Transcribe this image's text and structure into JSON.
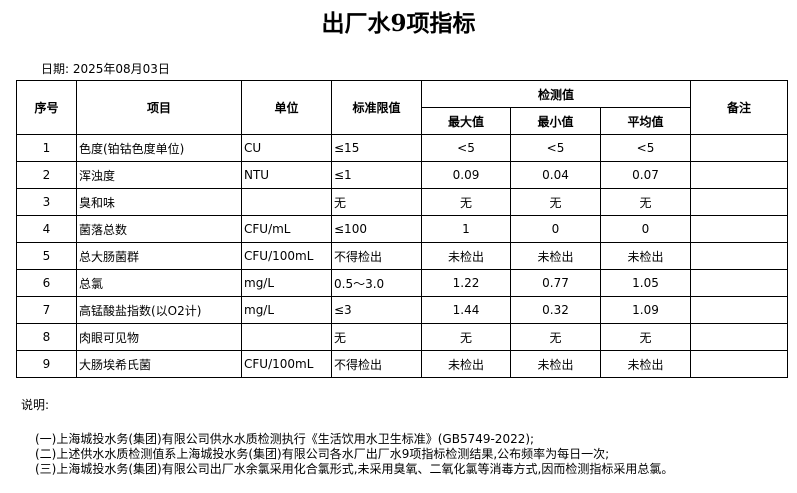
{
  "title": "出厂水9项指标",
  "date": "日期: 2025年08月03日",
  "headers": {
    "seq": "序号",
    "item": "项目",
    "unit": "单位",
    "limit": "标准限值",
    "detect": "检测值",
    "max": "最大值",
    "min": "最小值",
    "avg": "平均值",
    "remark": "备注"
  },
  "rows": [
    {
      "seq": "1",
      "item": "色度(铂钴色度单位)",
      "unit": "CU",
      "limit": "≤15",
      "max": "<5",
      "min": "<5",
      "avg": "<5",
      "remark": ""
    },
    {
      "seq": "2",
      "item": "浑浊度",
      "unit": "NTU",
      "limit": "≤1",
      "max": "0.09",
      "min": "0.04",
      "avg": "0.07",
      "remark": ""
    },
    {
      "seq": "3",
      "item": "臭和味",
      "unit": "",
      "limit": "无",
      "max": "无",
      "min": "无",
      "avg": "无",
      "remark": ""
    },
    {
      "seq": "4",
      "item": "菌落总数",
      "unit": "CFU/mL",
      "limit": "≤100",
      "max": "1",
      "min": "0",
      "avg": "0",
      "remark": ""
    },
    {
      "seq": "5",
      "item": "总大肠菌群",
      "unit": "CFU/100mL",
      "limit": "不得检出",
      "max": "未检出",
      "min": "未检出",
      "avg": "未检出",
      "remark": ""
    },
    {
      "seq": "6",
      "item": "总氯",
      "unit": "mg/L",
      "limit": "0.5～3.0",
      "max": "1.22",
      "min": "0.77",
      "avg": "1.05",
      "remark": ""
    },
    {
      "seq": "7",
      "item": "高锰酸盐指数(以O2计)",
      "unit": "mg/L",
      "limit": "≤3",
      "max": "1.44",
      "min": "0.32",
      "avg": "1.09",
      "remark": ""
    },
    {
      "seq": "8",
      "item": "肉眼可见物",
      "unit": "",
      "limit": "无",
      "max": "无",
      "min": "无",
      "avg": "无",
      "remark": ""
    },
    {
      "seq": "9",
      "item": "大肠埃希氏菌",
      "unit": "CFU/100mL",
      "limit": "不得检出",
      "max": "未检出",
      "min": "未检出",
      "avg": "未检出",
      "remark": ""
    }
  ],
  "notes_label": "说明:",
  "notes": [
    "(一)上海城投水务(集团)有限公司供水水质检测执行《生活饮用水卫生标准》(GB5749-2022);",
    "(二)上述供水水质检测值系上海城投水务(集团)有限公司各水厂出厂水9项指标检测结果,公布频率为每日一次;",
    "(三)上海城投水务(集团)有限公司出厂水余氯采用化合氯形式,未采用臭氧、二氧化氯等消毒方式,因而检测指标采用总氯。"
  ]
}
